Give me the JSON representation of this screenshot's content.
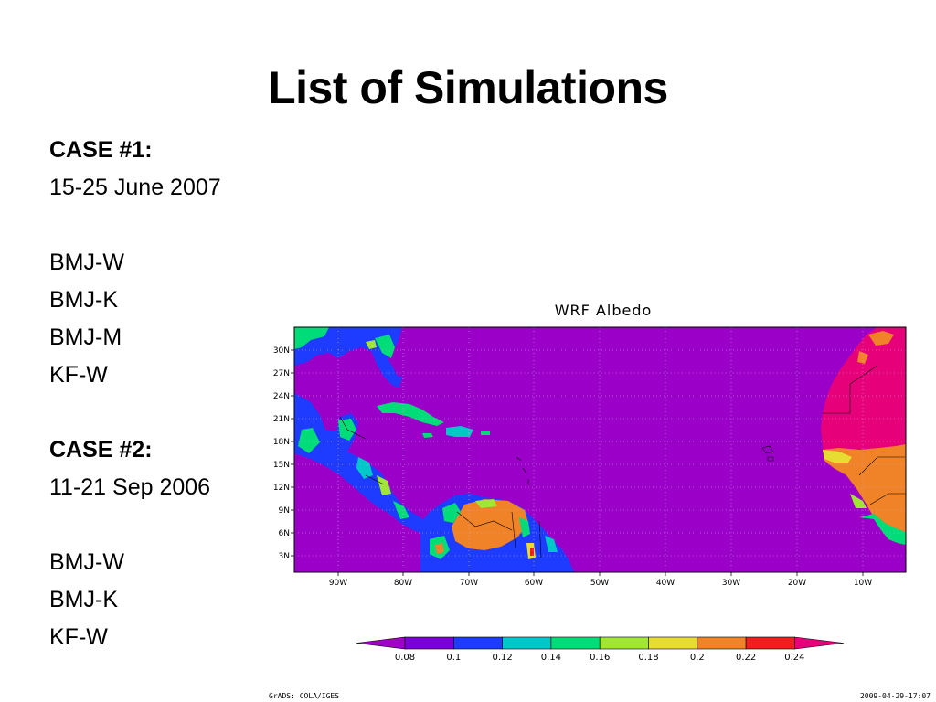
{
  "slide": {
    "title": "List of Simulations"
  },
  "case1": {
    "heading": "CASE #1:",
    "dates": "15-25 June 2007",
    "runs": [
      "BMJ-W",
      "BMJ-K",
      "BMJ-M",
      "KF-W"
    ]
  },
  "case2": {
    "heading": "CASE #2:",
    "dates": "11-21 Sep 2006",
    "runs": [
      "BMJ-W",
      "BMJ-K",
      "KF-W"
    ]
  },
  "map": {
    "title": "WRF Albedo",
    "lat_labels": [
      "30N",
      "27N",
      "24N",
      "21N",
      "18N",
      "15N",
      "12N",
      "9N",
      "6N",
      "3N"
    ],
    "lon_labels": [
      "90W",
      "80W",
      "70W",
      "60W",
      "50W",
      "40W",
      "30W",
      "20W",
      "10W"
    ],
    "colors": {
      "ocean": "#9b00c8",
      "grid": "#d8a8e8"
    }
  },
  "colorbar": {
    "ticks": [
      "0.08",
      "0.1",
      "0.12",
      "0.14",
      "0.16",
      "0.18",
      "0.2",
      "0.22",
      "0.24"
    ],
    "colors": [
      "#a000c8",
      "#7a00d8",
      "#1e3cff",
      "#00c8c8",
      "#00dc78",
      "#a0e632",
      "#e6dc32",
      "#f08228",
      "#f01e1e",
      "#e6007a"
    ]
  },
  "footer": {
    "left": "GrADS: COLA/IGES",
    "right": "2009-04-29-17:07"
  }
}
